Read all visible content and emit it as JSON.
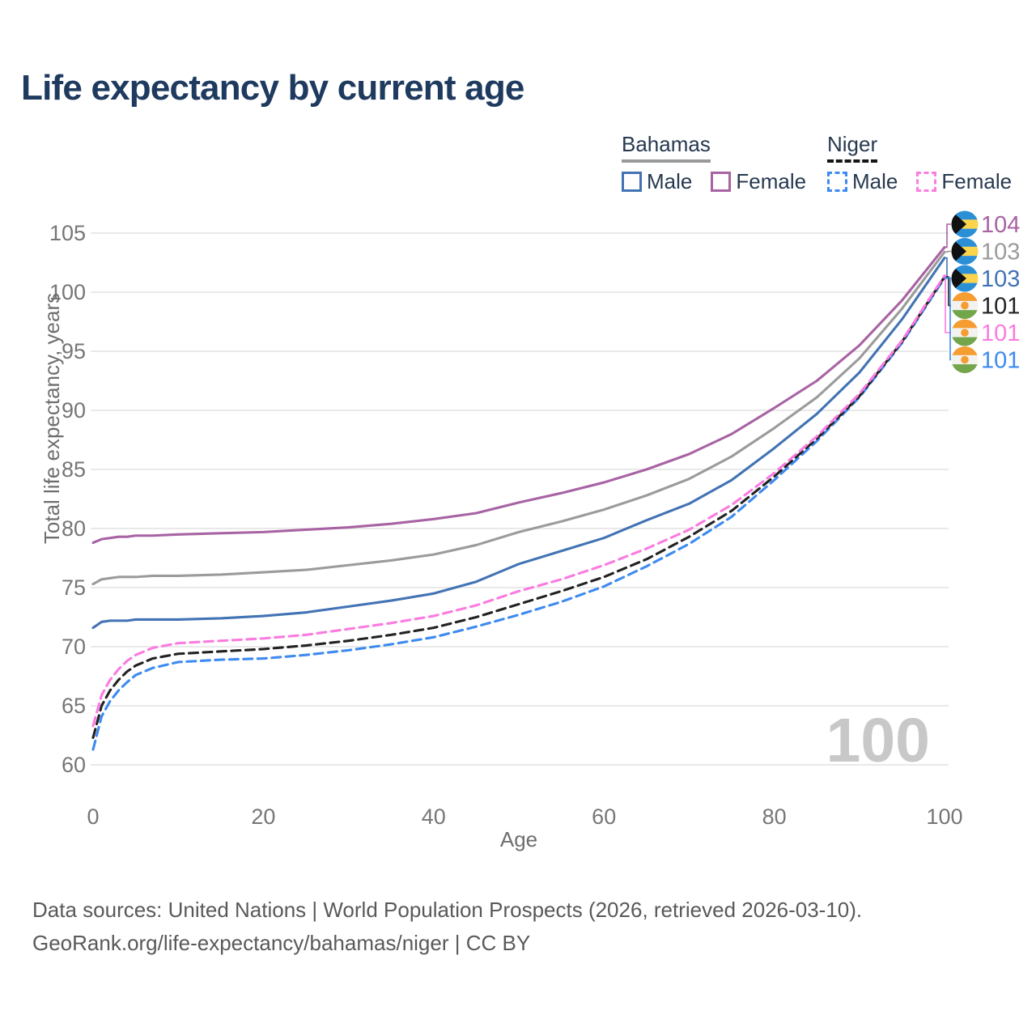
{
  "title": "Life expectancy by current age",
  "watermark": "100",
  "legend": {
    "groups": [
      {
        "name": "Bahamas",
        "items": [
          {
            "label": "Male",
            "series": "bahamas_male"
          },
          {
            "label": "Female",
            "series": "bahamas_female"
          }
        ]
      },
      {
        "name": "Niger",
        "items": [
          {
            "label": "Male",
            "series": "niger_male"
          },
          {
            "label": "Female",
            "series": "niger_female"
          }
        ]
      }
    ]
  },
  "axes": {
    "x": {
      "label": "Age",
      "ticks": [
        0,
        20,
        40,
        60,
        80,
        100
      ],
      "range": [
        0,
        100
      ]
    },
    "y": {
      "label": "Total life expectancy, years",
      "ticks": [
        60,
        65,
        70,
        75,
        80,
        85,
        90,
        95,
        100,
        105
      ],
      "range": [
        60,
        105
      ]
    }
  },
  "chart_data": {
    "type": "line",
    "grid": "horizontal",
    "x": [
      0,
      1,
      2,
      3,
      4,
      5,
      7,
      10,
      15,
      20,
      25,
      30,
      35,
      40,
      45,
      50,
      55,
      60,
      65,
      70,
      75,
      80,
      85,
      90,
      95,
      100
    ],
    "series": [
      {
        "key": "bahamas_all",
        "name": "Bahamas (both sexes)",
        "color": "#9b9b9b",
        "dash": false,
        "values": [
          75.3,
          75.7,
          75.8,
          75.9,
          75.9,
          75.9,
          76.0,
          76.0,
          76.1,
          76.3,
          76.5,
          76.9,
          77.3,
          77.8,
          78.6,
          79.7,
          80.6,
          81.6,
          82.8,
          84.2,
          86.1,
          88.5,
          91.1,
          94.4,
          98.6,
          103.4
        ]
      },
      {
        "key": "bahamas_male",
        "name": "Bahamas Male",
        "color": "#4273b4",
        "dash": false,
        "values": [
          71.6,
          72.1,
          72.2,
          72.2,
          72.2,
          72.3,
          72.3,
          72.3,
          72.4,
          72.6,
          72.9,
          73.4,
          73.9,
          74.5,
          75.5,
          77.0,
          78.1,
          79.2,
          80.7,
          82.1,
          84.1,
          86.8,
          89.7,
          93.2,
          97.7,
          102.9
        ]
      },
      {
        "key": "bahamas_female",
        "name": "Bahamas Female",
        "color": "#a863a3",
        "dash": false,
        "values": [
          78.8,
          79.1,
          79.2,
          79.3,
          79.3,
          79.4,
          79.4,
          79.5,
          79.6,
          79.7,
          79.9,
          80.1,
          80.4,
          80.8,
          81.3,
          82.2,
          83.0,
          83.9,
          85.0,
          86.3,
          88.0,
          90.2,
          92.5,
          95.5,
          99.3,
          103.8
        ]
      },
      {
        "key": "niger_male",
        "name": "Niger Male",
        "color": "#3d8af0",
        "dash": true,
        "values": [
          61.3,
          64.1,
          65.4,
          66.3,
          67.0,
          67.6,
          68.2,
          68.7,
          68.9,
          69.0,
          69.3,
          69.7,
          70.2,
          70.8,
          71.7,
          72.7,
          73.8,
          75.1,
          76.8,
          78.7,
          81.0,
          84.1,
          87.4,
          91.1,
          95.7,
          101.2
        ]
      },
      {
        "key": "niger_all",
        "name": "Niger (both sexes)",
        "color": "#222222",
        "dash": true,
        "values": [
          62.3,
          65.0,
          66.3,
          67.2,
          67.9,
          68.4,
          69.0,
          69.4,
          69.6,
          69.8,
          70.1,
          70.5,
          71.0,
          71.6,
          72.5,
          73.6,
          74.7,
          75.9,
          77.4,
          79.3,
          81.5,
          84.4,
          87.6,
          91.2,
          95.8,
          101.3
        ]
      },
      {
        "key": "niger_female",
        "name": "Niger Female",
        "color": "#fb7be0",
        "dash": true,
        "values": [
          63.3,
          65.9,
          67.2,
          68.1,
          68.8,
          69.3,
          69.9,
          70.3,
          70.5,
          70.7,
          71.0,
          71.5,
          72.0,
          72.6,
          73.5,
          74.7,
          75.7,
          76.9,
          78.3,
          79.9,
          82.0,
          84.7,
          87.8,
          91.4,
          95.9,
          101.4
        ]
      }
    ]
  },
  "annotations": [
    {
      "label": "104",
      "series": "bahamas_female",
      "flag": "bahamas"
    },
    {
      "label": "103",
      "series": "bahamas_all",
      "flag": "bahamas"
    },
    {
      "label": "103",
      "series": "bahamas_male",
      "flag": "bahamas"
    },
    {
      "label": "101",
      "series": "niger_all",
      "flag": "niger"
    },
    {
      "label": "101",
      "series": "niger_female",
      "flag": "niger"
    },
    {
      "label": "101",
      "series": "niger_male",
      "flag": "niger"
    }
  ],
  "flag_colors": {
    "bahamas": {
      "stripe": "#2b8fd6",
      "middle": "#fbd44b",
      "chevron": "#111111"
    },
    "niger": {
      "top": "#f59d31",
      "middle": "#f2f2f0",
      "bottom": "#73a54b",
      "disc": "#f59d31"
    }
  },
  "footer": {
    "line1": "Data sources: United Nations | World Population Prospects (2026, retrieved 2026-03-10).",
    "line2": "GeoRank.org/life-expectancy/bahamas/niger | CC BY"
  }
}
